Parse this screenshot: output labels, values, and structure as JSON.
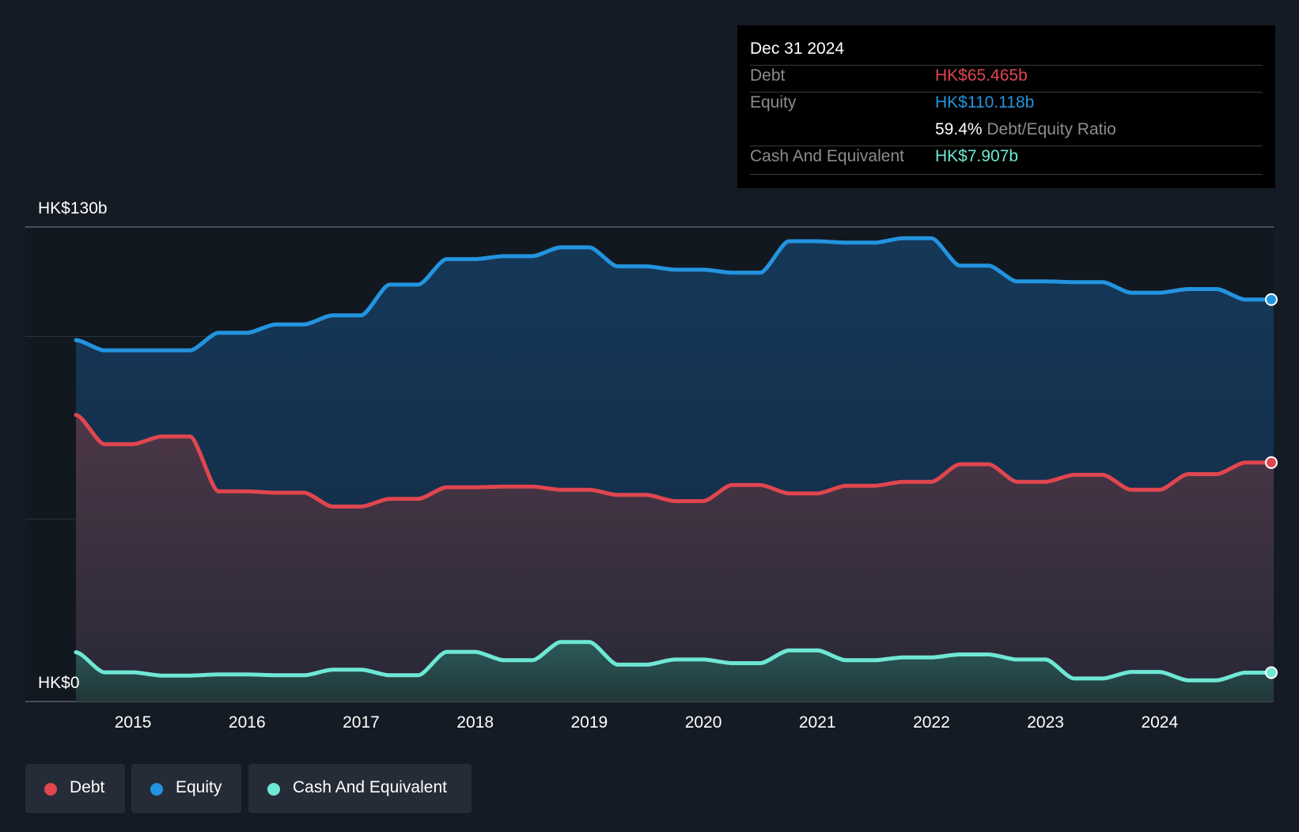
{
  "colors": {
    "background": "#151b24",
    "debt": "#e0464f",
    "equity": "#2394df",
    "cash": "#6ee7d4"
  },
  "tooltip": {
    "date": "Dec 31 2024",
    "debt_label": "Debt",
    "debt_value": "HK$65.465b",
    "equity_label": "Equity",
    "equity_value": "HK$110.118b",
    "ratio_value": "59.4%",
    "ratio_label": "Debt/Equity Ratio",
    "cash_label": "Cash And Equivalent",
    "cash_value": "HK$7.907b"
  },
  "legend": [
    {
      "label": "Debt",
      "color": "#e0464f"
    },
    {
      "label": "Equity",
      "color": "#2394df"
    },
    {
      "label": "Cash And Equivalent",
      "color": "#6ee7d4"
    }
  ],
  "chart_data": {
    "type": "area",
    "ylim": [
      0,
      130
    ],
    "y_tick_labels": [
      {
        "value": 130,
        "label": "HK$130b"
      },
      {
        "value": 0,
        "label": "HK$0"
      }
    ],
    "gridlines": [
      0,
      50,
      100,
      130
    ],
    "xlim": [
      2014.5,
      2025.0
    ],
    "x_ticks": [
      2015,
      2016,
      2017,
      2018,
      2019,
      2020,
      2021,
      2022,
      2023,
      2024
    ],
    "grid": true,
    "legend_position": "bottom-left",
    "series": [
      {
        "name": "Equity",
        "color": "#2394df",
        "points": [
          [
            2014.5,
            99.0
          ],
          [
            2014.75,
            96.2
          ],
          [
            2015.0,
            96.2
          ],
          [
            2015.25,
            96.2
          ],
          [
            2015.5,
            96.2
          ],
          [
            2015.75,
            101.0
          ],
          [
            2016.0,
            101.0
          ],
          [
            2016.25,
            103.3
          ],
          [
            2016.5,
            103.3
          ],
          [
            2016.75,
            105.8
          ],
          [
            2017.0,
            105.8
          ],
          [
            2017.25,
            114.2
          ],
          [
            2017.5,
            114.2
          ],
          [
            2017.75,
            121.2
          ],
          [
            2018.0,
            121.2
          ],
          [
            2018.25,
            122.0
          ],
          [
            2018.5,
            122.0
          ],
          [
            2018.75,
            124.4
          ],
          [
            2019.0,
            124.4
          ],
          [
            2019.25,
            119.2
          ],
          [
            2019.5,
            119.2
          ],
          [
            2019.75,
            118.3
          ],
          [
            2020.0,
            118.3
          ],
          [
            2020.25,
            117.5
          ],
          [
            2020.5,
            117.5
          ],
          [
            2020.75,
            126.1
          ],
          [
            2021.0,
            126.1
          ],
          [
            2021.25,
            125.7
          ],
          [
            2021.5,
            125.7
          ],
          [
            2021.75,
            126.9
          ],
          [
            2022.0,
            126.9
          ],
          [
            2022.25,
            119.4
          ],
          [
            2022.5,
            119.4
          ],
          [
            2022.75,
            115.1
          ],
          [
            2023.0,
            115.1
          ],
          [
            2023.25,
            114.9
          ],
          [
            2023.5,
            114.9
          ],
          [
            2023.75,
            112.0
          ],
          [
            2024.0,
            112.0
          ],
          [
            2024.25,
            113.0
          ],
          [
            2024.5,
            113.0
          ],
          [
            2024.75,
            110.118
          ],
          [
            2025.0,
            110.118
          ]
        ]
      },
      {
        "name": "Debt",
        "color": "#e0464f",
        "points": [
          [
            2014.5,
            78.5
          ],
          [
            2014.75,
            70.5
          ],
          [
            2015.0,
            70.5
          ],
          [
            2015.25,
            72.6
          ],
          [
            2015.5,
            72.6
          ],
          [
            2015.75,
            57.6
          ],
          [
            2016.0,
            57.6
          ],
          [
            2016.25,
            57.2
          ],
          [
            2016.5,
            57.2
          ],
          [
            2016.75,
            53.4
          ],
          [
            2017.0,
            53.4
          ],
          [
            2017.25,
            55.5
          ],
          [
            2017.5,
            55.5
          ],
          [
            2017.75,
            58.7
          ],
          [
            2018.0,
            58.7
          ],
          [
            2018.25,
            58.9
          ],
          [
            2018.5,
            58.9
          ],
          [
            2018.75,
            58.0
          ],
          [
            2019.0,
            58.0
          ],
          [
            2019.25,
            56.6
          ],
          [
            2019.5,
            56.6
          ],
          [
            2019.75,
            54.9
          ],
          [
            2020.0,
            54.9
          ],
          [
            2020.25,
            59.3
          ],
          [
            2020.5,
            59.3
          ],
          [
            2020.75,
            57.0
          ],
          [
            2021.0,
            57.0
          ],
          [
            2021.25,
            59.1
          ],
          [
            2021.5,
            59.1
          ],
          [
            2021.75,
            60.2
          ],
          [
            2022.0,
            60.2
          ],
          [
            2022.25,
            65.0
          ],
          [
            2022.5,
            65.0
          ],
          [
            2022.75,
            60.2
          ],
          [
            2023.0,
            60.2
          ],
          [
            2023.25,
            62.1
          ],
          [
            2023.5,
            62.1
          ],
          [
            2023.75,
            58.0
          ],
          [
            2024.0,
            58.0
          ],
          [
            2024.25,
            62.3
          ],
          [
            2024.5,
            62.3
          ],
          [
            2024.75,
            65.465
          ],
          [
            2025.0,
            65.465
          ]
        ]
      },
      {
        "name": "Cash And Equivalent",
        "color": "#6ee7d4",
        "points": [
          [
            2014.5,
            13.5
          ],
          [
            2014.75,
            8.0
          ],
          [
            2015.0,
            8.0
          ],
          [
            2015.25,
            7.1
          ],
          [
            2015.5,
            7.1
          ],
          [
            2015.75,
            7.4
          ],
          [
            2016.0,
            7.4
          ],
          [
            2016.25,
            7.2
          ],
          [
            2016.5,
            7.2
          ],
          [
            2016.75,
            8.7
          ],
          [
            2017.0,
            8.7
          ],
          [
            2017.25,
            7.2
          ],
          [
            2017.5,
            7.2
          ],
          [
            2017.75,
            13.6
          ],
          [
            2018.0,
            13.6
          ],
          [
            2018.25,
            11.3
          ],
          [
            2018.5,
            11.3
          ],
          [
            2018.75,
            16.3
          ],
          [
            2019.0,
            16.3
          ],
          [
            2019.25,
            10.1
          ],
          [
            2019.5,
            10.1
          ],
          [
            2019.75,
            11.5
          ],
          [
            2020.0,
            11.5
          ],
          [
            2020.25,
            10.5
          ],
          [
            2020.5,
            10.5
          ],
          [
            2020.75,
            14.0
          ],
          [
            2021.0,
            14.0
          ],
          [
            2021.25,
            11.3
          ],
          [
            2021.5,
            11.3
          ],
          [
            2021.75,
            12.1
          ],
          [
            2022.0,
            12.1
          ],
          [
            2022.25,
            12.9
          ],
          [
            2022.5,
            12.9
          ],
          [
            2022.75,
            11.5
          ],
          [
            2023.0,
            11.5
          ],
          [
            2023.25,
            6.3
          ],
          [
            2023.5,
            6.3
          ],
          [
            2023.75,
            8.1
          ],
          [
            2024.0,
            8.1
          ],
          [
            2024.25,
            5.8
          ],
          [
            2024.5,
            5.8
          ],
          [
            2024.75,
            7.907
          ],
          [
            2025.0,
            7.907
          ]
        ]
      }
    ]
  }
}
